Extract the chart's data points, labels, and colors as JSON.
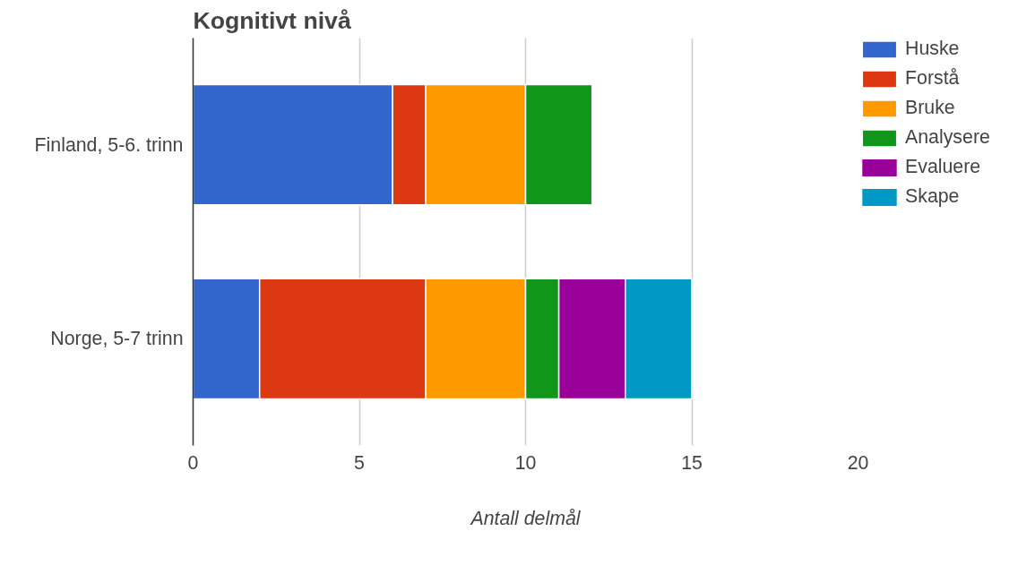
{
  "chart_data": {
    "type": "bar",
    "orientation": "horizontal",
    "stacked": true,
    "title": "Kognitivt nivå",
    "xlabel": "Antall delmål",
    "categories": [
      "Finland, 5-6. trinn",
      "Norge, 5-7 trinn"
    ],
    "series": [
      {
        "name": "Huske",
        "color": "#3366cc",
        "values": [
          6,
          2
        ]
      },
      {
        "name": "Forstå",
        "color": "#dc3912",
        "values": [
          1,
          5
        ]
      },
      {
        "name": "Bruke",
        "color": "#ff9900",
        "values": [
          3,
          3
        ]
      },
      {
        "name": "Analysere",
        "color": "#109618",
        "values": [
          2,
          1
        ]
      },
      {
        "name": "Evaluere",
        "color": "#990099",
        "values": [
          0,
          2
        ]
      },
      {
        "name": "Skape",
        "color": "#0099c6",
        "values": [
          0,
          2
        ]
      }
    ],
    "xlim": [
      0,
      20
    ],
    "xticks": [
      0,
      5,
      10,
      15,
      20
    ],
    "grid": "x",
    "legend": "top right"
  }
}
